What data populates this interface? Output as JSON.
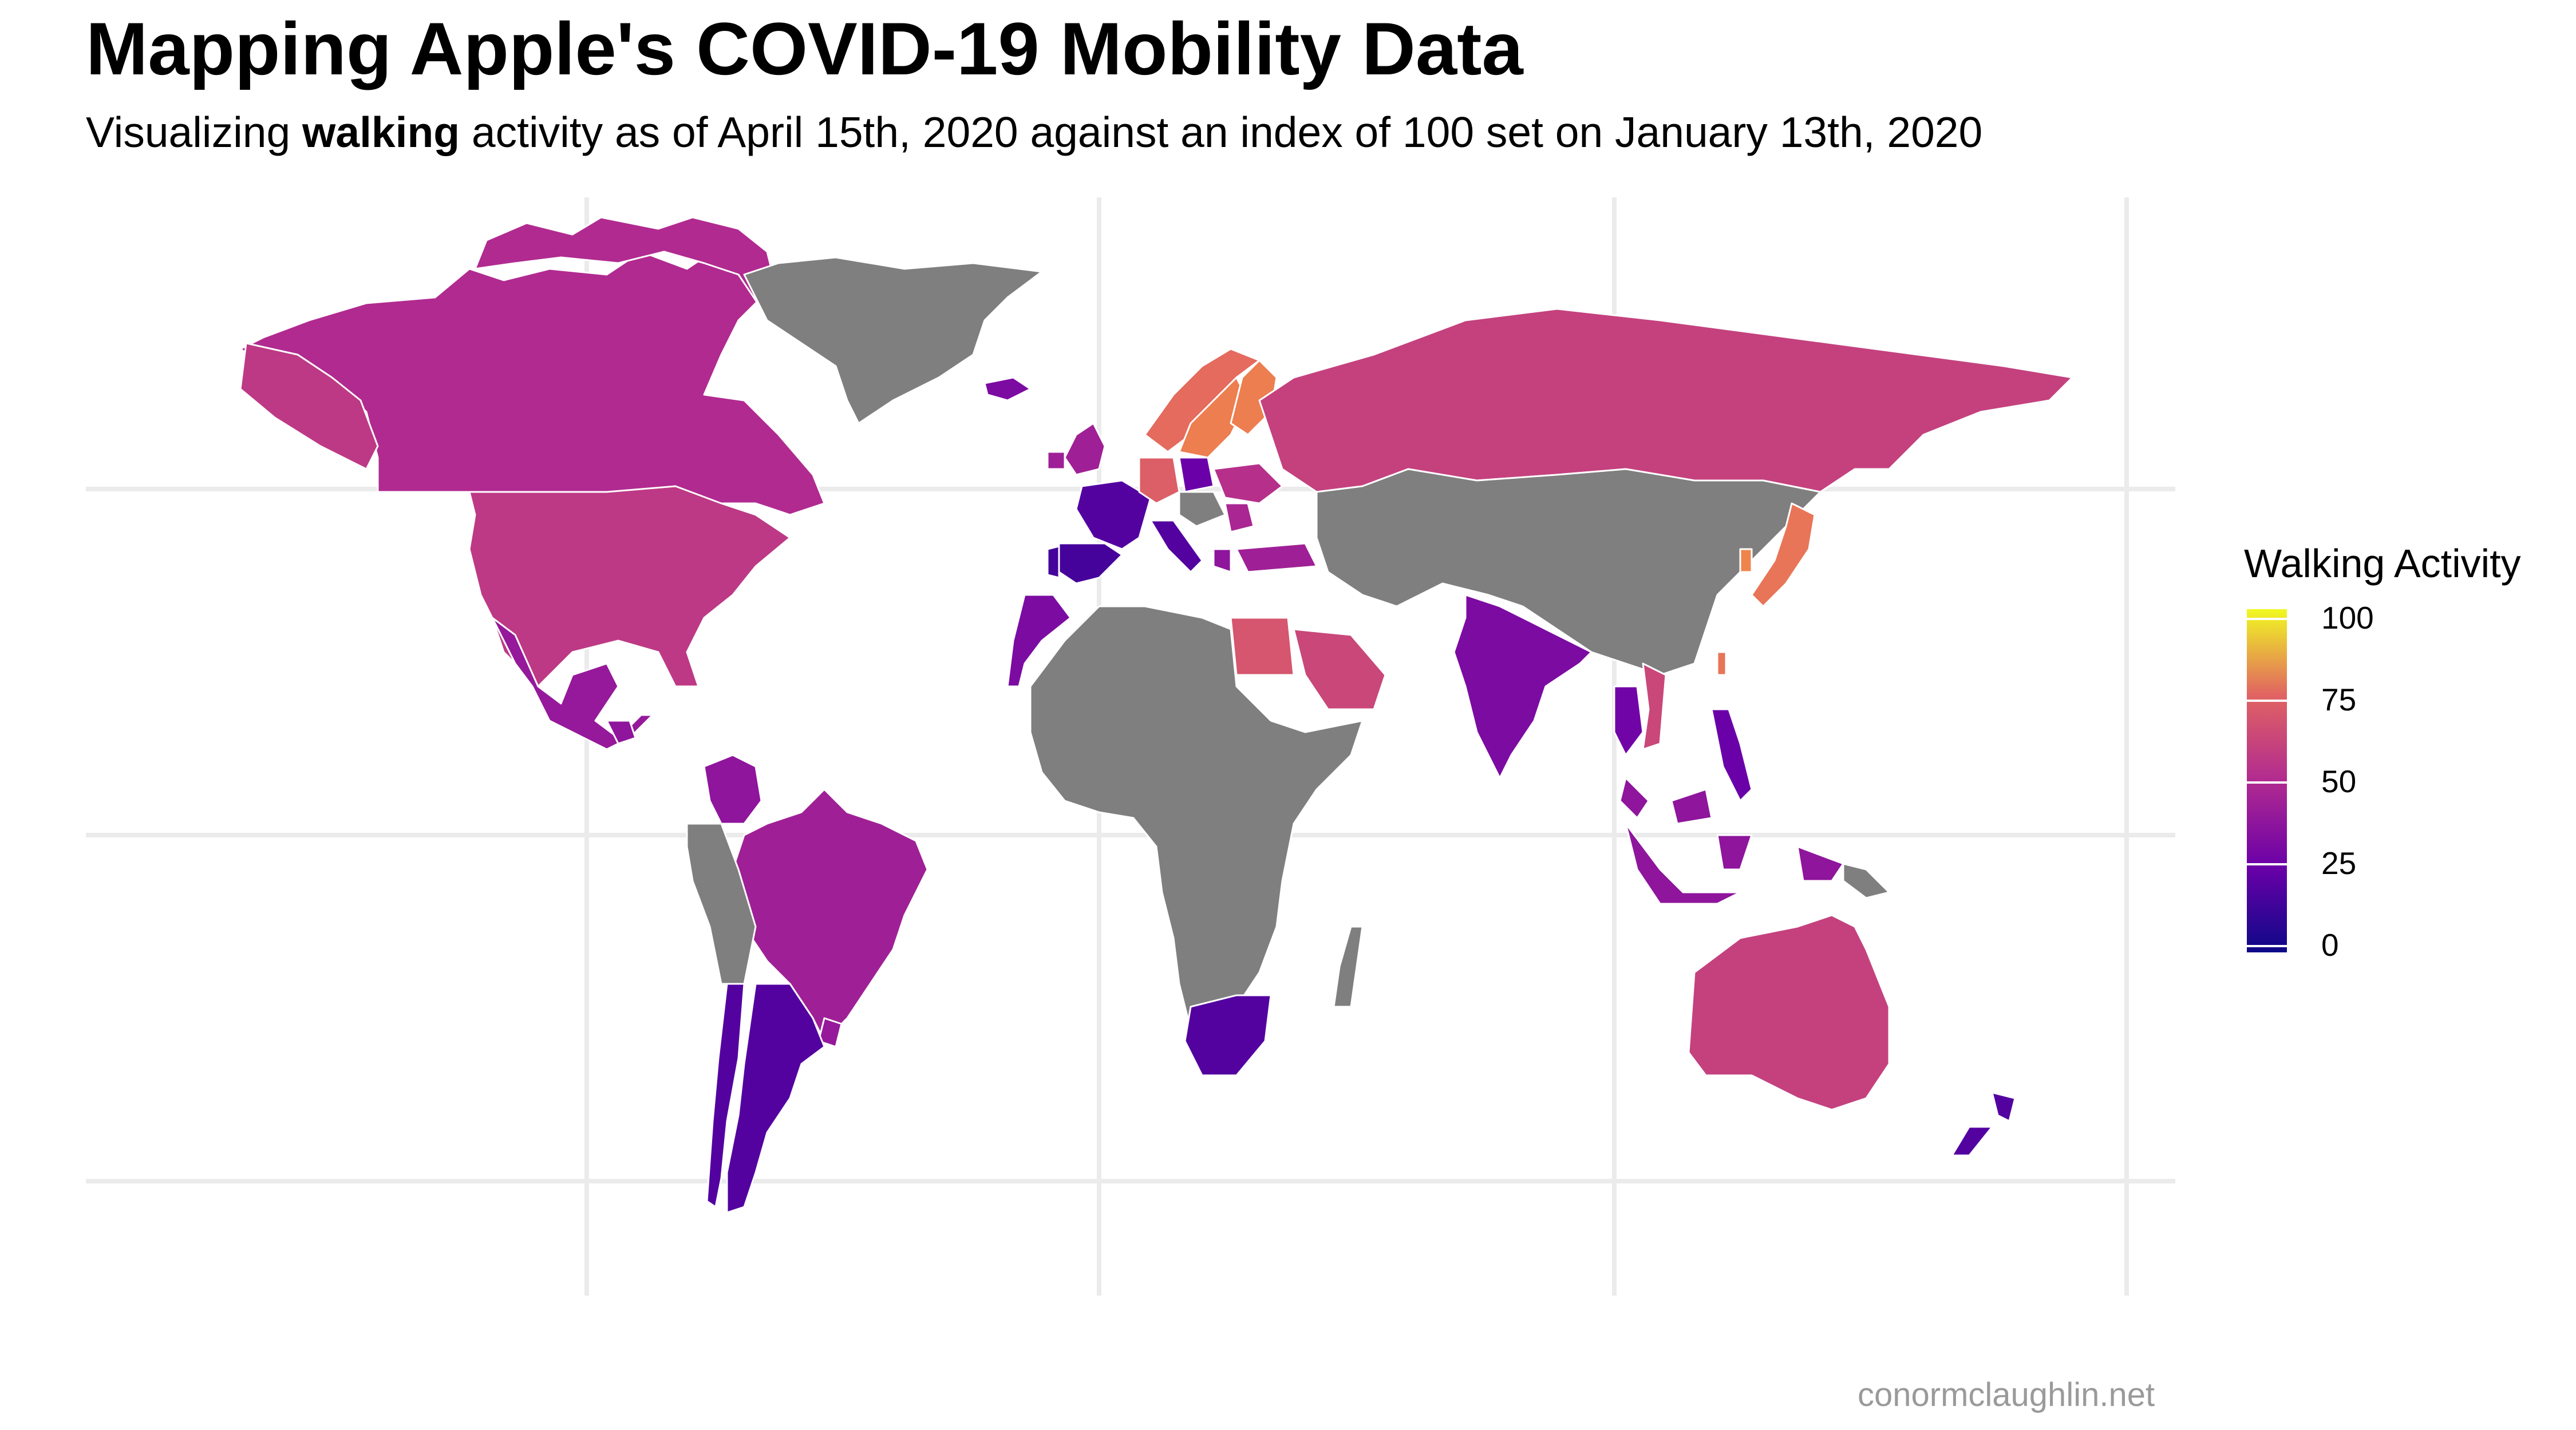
{
  "title": "Mapping Apple's COVID-19 Mobility Data",
  "subtitle": {
    "prefix": "Visualizing ",
    "bold": "walking",
    "suffix": " activity as of April 15th, 2020 against an index of 100 set on January 13th, 2020"
  },
  "legend": {
    "title": "Walking Activity",
    "ticks": [
      "100",
      "75",
      "50",
      "25",
      "0"
    ]
  },
  "credit": "conormclaughlin.net",
  "colors": {
    "no_data": "#7f7f7f",
    "grid": "#ebebeb",
    "border": "#ffffff",
    "scale": [
      "#0d0887",
      "#6a00a8",
      "#b12a90",
      "#e16462",
      "#fca636",
      "#f0f921"
    ]
  },
  "chart_data": {
    "type": "choropleth",
    "metric": "Walking Activity",
    "scale_range": [
      0,
      100
    ],
    "values": {
      "Canada": 40,
      "United States": 45,
      "Mexico": 32,
      "Guatemala": 30,
      "Colombia": 30,
      "Brazil": 35,
      "Uruguay": 32,
      "Chile": 15,
      "Argentina": 15,
      "Greenland": null,
      "Iceland": 25,
      "United Kingdom": 35,
      "Ireland": 35,
      "Norway": 62,
      "Sweden": 68,
      "Finland": 68,
      "France": 15,
      "Spain": 12,
      "Portugal": 12,
      "Italy": 15,
      "Germany": 58,
      "Poland": 20,
      "Czechia": 20,
      "Austria": 30,
      "Hungary": 30,
      "Romania": 38,
      "Serbia": 35,
      "Greece": 30,
      "Turkey": 35,
      "Ukraine": 42,
      "Russia": 48,
      "Morocco": 25,
      "Egypt": 55,
      "Saudi Arabia": 50,
      "Israel": 20,
      "India": 25,
      "Thailand": 22,
      "Vietnam": 50,
      "Malaysia": 30,
      "Indonesia": 30,
      "Philippines": 20,
      "Taiwan": 65,
      "South Korea": 70,
      "Japan": 65,
      "South Africa": 15,
      "Australia": 48,
      "New Zealand": 15
    }
  }
}
